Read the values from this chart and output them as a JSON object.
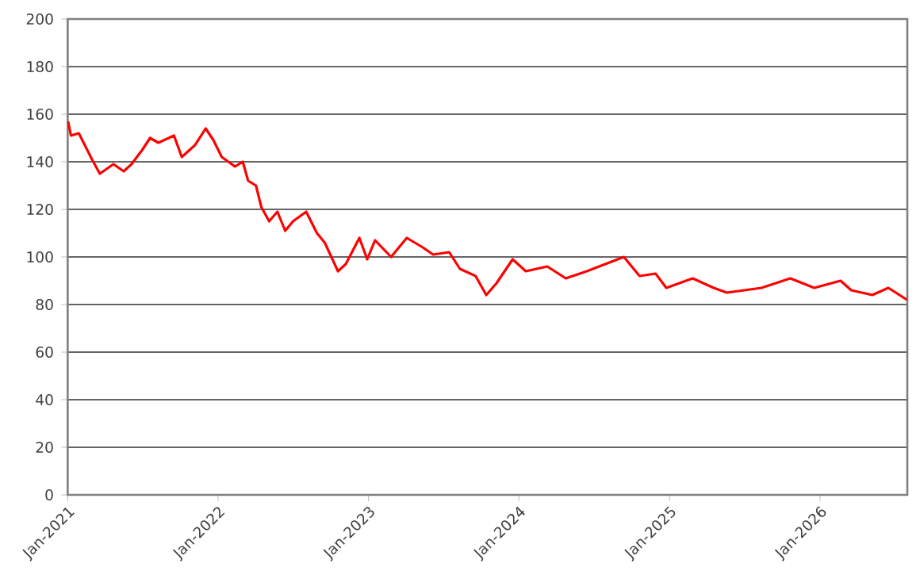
{
  "chart_data": {
    "type": "line",
    "x": [
      "2021-01-02",
      "2021-01-09",
      "2021-01-28",
      "2021-03-01",
      "2021-03-20",
      "2021-04-22",
      "2021-05-17",
      "2021-06-05",
      "2021-07-01",
      "2021-07-20",
      "2021-08-09",
      "2021-09-16",
      "2021-10-05",
      "2021-11-06",
      "2021-12-02",
      "2021-12-21",
      "2022-01-10",
      "2022-02-11",
      "2022-03-02",
      "2022-03-15",
      "2022-04-03",
      "2022-04-16",
      "2022-05-05",
      "2022-05-25",
      "2022-06-13",
      "2022-07-02",
      "2022-08-03",
      "2022-08-29",
      "2022-09-17",
      "2022-10-19",
      "2022-11-07",
      "2022-12-10",
      "2022-12-29",
      "2023-01-17",
      "2023-02-25",
      "2023-04-04",
      "2023-05-13",
      "2023-06-07",
      "2023-07-16",
      "2023-08-11",
      "2023-09-18",
      "2023-10-14",
      "2023-11-08",
      "2023-12-17",
      "2024-01-18",
      "2024-03-10",
      "2024-04-24",
      "2024-06-14",
      "2024-07-29",
      "2024-09-12",
      "2024-10-20",
      "2024-11-28",
      "2024-12-24",
      "2025-02-26",
      "2025-04-18",
      "2025-05-20",
      "2025-08-12",
      "2025-10-21",
      "2025-12-18",
      "2026-02-20",
      "2026-03-18",
      "2026-05-08",
      "2026-06-16",
      "2026-07-31"
    ],
    "series": [
      {
        "color": "#ff0000",
        "values": [
          157,
          151,
          152,
          141,
          135,
          139,
          136,
          139,
          145,
          150,
          148,
          151,
          142,
          147,
          154,
          149,
          142,
          138,
          140,
          132,
          130,
          121,
          115,
          119,
          111,
          115,
          119,
          110,
          106,
          94,
          97,
          108,
          99,
          107,
          100,
          108,
          104,
          101,
          102,
          95,
          92,
          84,
          89,
          99,
          94,
          96,
          91,
          94,
          97,
          100,
          92,
          93,
          87,
          91,
          87,
          85,
          87,
          91,
          87,
          90,
          86,
          84,
          87,
          82
        ]
      }
    ],
    "xlim": [
      "2021-01-01",
      "2026-08-01"
    ],
    "xticks": [
      {
        "value": "2021-01-01",
        "label": "Jan-2021"
      },
      {
        "value": "2022-01-01",
        "label": "Jan-2022"
      },
      {
        "value": "2023-01-01",
        "label": "Jan-2023"
      },
      {
        "value": "2024-01-01",
        "label": "Jan-2024"
      },
      {
        "value": "2025-01-01",
        "label": "Jan-2025"
      },
      {
        "value": "2026-01-01",
        "label": "Jan-2026"
      }
    ],
    "ylim": [
      0,
      200
    ],
    "yticks": [
      0,
      20,
      40,
      60,
      80,
      100,
      120,
      140,
      160,
      180,
      200
    ],
    "grid": "y",
    "marker": "none",
    "line_style": "solid"
  }
}
